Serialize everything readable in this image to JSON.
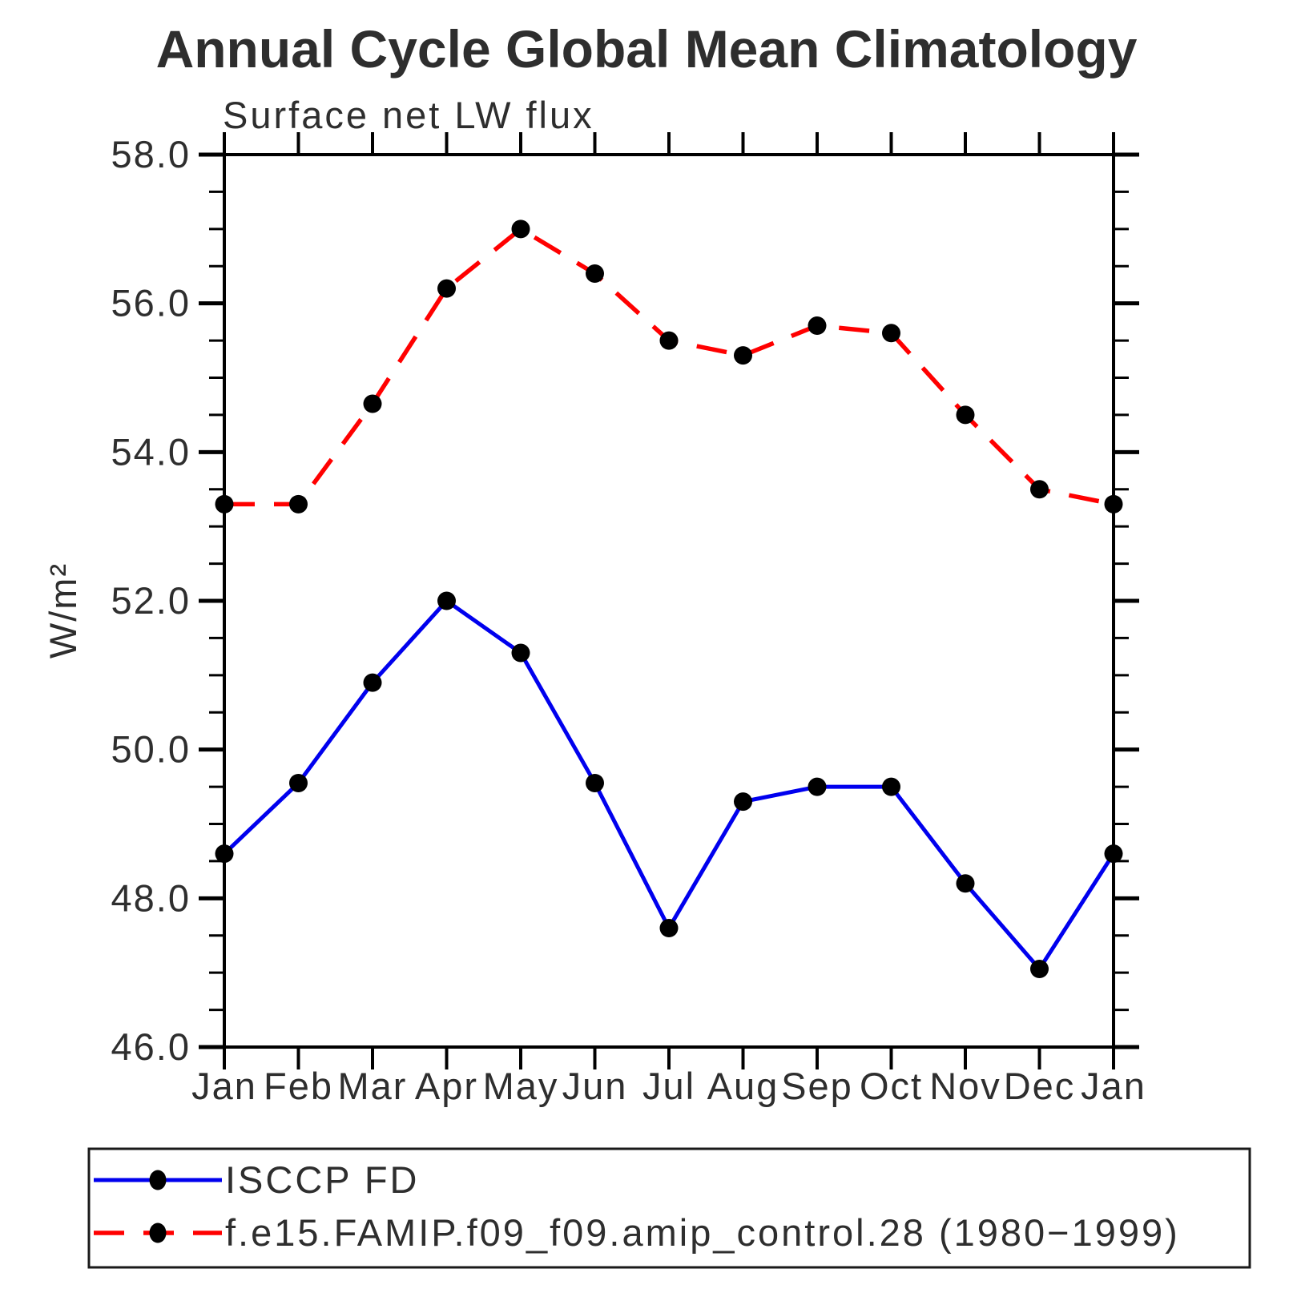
{
  "chart_data": {
    "type": "line",
    "title": "Annual Cycle Global Mean Climatology",
    "subtitle": "Surface net LW flux",
    "ylabel": "W/m²",
    "categories": [
      "Jan",
      "Feb",
      "Mar",
      "Apr",
      "May",
      "Jun",
      "Jul",
      "Aug",
      "Sep",
      "Oct",
      "Nov",
      "Dec",
      "Jan"
    ],
    "ylim": [
      46.0,
      58.0
    ],
    "ytick_major_step": 2.0,
    "ytick_minor_step": 0.5,
    "ytick_labels": [
      "58.0",
      "56.0",
      "54.0",
      "52.0",
      "50.0",
      "48.0",
      "46.0"
    ],
    "grid": false,
    "legend_position": "bottom",
    "colors": {
      "axis": "#000000",
      "marker": "#000000",
      "title": "#000000",
      "subtitle": "#3d3d3d",
      "obs_line": "#0000ee",
      "model_line": "#ff0000"
    },
    "series": [
      {
        "name": "ISCCP FD",
        "color": "#0000ee",
        "style": "solid",
        "marker": "circle",
        "values": [
          48.6,
          49.55,
          50.9,
          52.0,
          51.3,
          49.55,
          47.6,
          49.3,
          49.5,
          49.5,
          48.2,
          47.05,
          48.6
        ]
      },
      {
        "name": "f.e15.FAMIP.f09_f09.amip_control.28 (1980−1999)",
        "color": "#ff0000",
        "style": "dashed",
        "marker": "circle",
        "values": [
          53.3,
          53.3,
          54.65,
          56.2,
          57.0,
          56.4,
          55.5,
          55.3,
          55.7,
          55.6,
          54.5,
          53.5,
          53.3
        ]
      }
    ]
  }
}
